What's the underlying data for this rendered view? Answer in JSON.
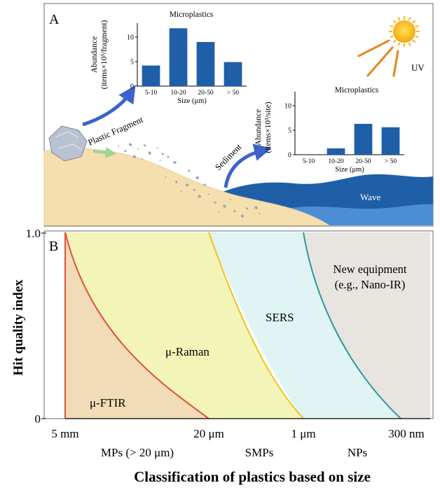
{
  "panel_a": {
    "label": "A",
    "uv_label": "UV",
    "plastic_fragment_label": "Plastic Fragment",
    "sediment_label": "Sediment",
    "wave_label": "Wave",
    "colors": {
      "sand": "#f5dfae",
      "sea_dark": "#1f5fa8",
      "sea_light": "#3f86cf",
      "bar": "#1f5fa8",
      "arrow": "#3b63c8",
      "sun": "#f6b619",
      "rays": "#e58a24"
    }
  },
  "chart_data": [
    {
      "type": "bar",
      "title": "Microplastics",
      "ylabel": "Abundance (items×10³/fragment)",
      "xlabel": "Size (μm)",
      "categories": [
        "5-10",
        "10-20",
        "20-50",
        "> 50"
      ],
      "values": [
        4.2,
        11.8,
        9.0,
        4.9
      ],
      "ylim": [
        0,
        12
      ],
      "yticks": [
        "0",
        "5",
        "10"
      ]
    },
    {
      "type": "bar",
      "title": "Microplastics",
      "ylabel": "Abundance (items×10³/site)",
      "xlabel": "Size (μm)",
      "categories": [
        "5-10",
        "10-20",
        "20-50",
        "> 50"
      ],
      "values": [
        0,
        1.3,
        6.3,
        5.6
      ],
      "ylim": [
        0,
        12
      ],
      "yticks": [
        "0",
        "5",
        "10"
      ]
    }
  ],
  "panel_b": {
    "label": "B",
    "y_axis_label": "Hit quality index",
    "y_ticks": [
      "0",
      "1.0"
    ],
    "x_ticks": [
      "5 mm",
      "20 μm",
      "1 μm",
      "300 nm"
    ],
    "x_axis_label": "Classification of plastics based on size",
    "regions": {
      "ftir": "μ-FTIR",
      "raman": "μ-Raman",
      "sers": "SERS",
      "new_equipment_line1": "New equipment",
      "new_equipment_line2": "(e.g., Nano-IR)"
    },
    "categories": [
      "MPs (> 20 μm)",
      "SMPs",
      "NPs"
    ],
    "colors": {
      "ftir": "#f2dcb8",
      "raman": "#f3f5b8",
      "sers": "#dff4f3",
      "new": "#e8e4e0",
      "ftir_line": "#e0523a",
      "raman_line": "#f0c21e",
      "sers_line": "#2a9a9c"
    }
  }
}
